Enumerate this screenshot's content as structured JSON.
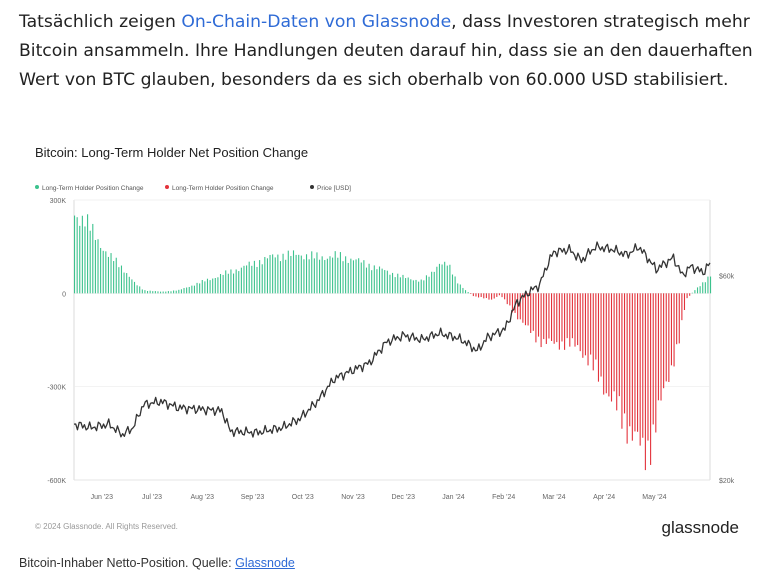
{
  "intro": {
    "before": "Tatsächlich zeigen ",
    "link": "On-Chain-Daten von Glassnode",
    "after": ", dass Investoren strategisch mehr Bitcoin ansammeln. Ihre Handlungen deuten darauf hin, dass sie an den dauerhaften Wert von BTC glauben, besonders da es sich oberhalb von 60.000 USD stabilisiert."
  },
  "caption": {
    "text": "Bitcoin-Inhaber Netto-Position. Quelle: ",
    "link": "Glassnode"
  },
  "colors": {
    "positive": "#3cc28d",
    "negative": "#e3323b",
    "price": "#333333",
    "link": "#2f6bd6"
  },
  "chart_data": {
    "type": "bar",
    "title": "Bitcoin: Long-Term Holder Net Position Change",
    "legend": [
      {
        "label": "Long-Term Holder Position Change",
        "color": "#3cc28d"
      },
      {
        "label": "Long-Term Holder Position Change",
        "color": "#e3323b"
      },
      {
        "label": "Price [USD]",
        "color": "#333333"
      }
    ],
    "legend_placement": "top-left",
    "y_left": {
      "ticks": [
        300000,
        0,
        -300000,
        -600000
      ],
      "tick_labels": [
        "300K",
        "0",
        "-300K",
        "-600K"
      ],
      "lim": [
        -600000,
        300000
      ]
    },
    "y_right": {
      "scale": "log",
      "ticks": [
        60000,
        20000
      ],
      "tick_labels": [
        "$60k",
        "$20k"
      ],
      "lim": [
        20000,
        90000
      ]
    },
    "x_ticks": [
      "Jun '23",
      "Jul '23",
      "Aug '23",
      "Sep '23",
      "Oct '23",
      "Nov '23",
      "Dec '23",
      "Jan '24",
      "Feb '24",
      "Mar '24",
      "Apr '24",
      "May '24"
    ],
    "x_range_days": [
      0,
      366
    ],
    "position_change": {
      "unit": "BTC",
      "keyframes": [
        [
          0,
          250000
        ],
        [
          6,
          240000
        ],
        [
          12,
          180000
        ],
        [
          20,
          120000
        ],
        [
          28,
          80000
        ],
        [
          35,
          30000
        ],
        [
          40,
          10000
        ],
        [
          50,
          5000
        ],
        [
          60,
          10000
        ],
        [
          70,
          30000
        ],
        [
          85,
          60000
        ],
        [
          100,
          90000
        ],
        [
          115,
          120000
        ],
        [
          130,
          125000
        ],
        [
          140,
          115000
        ],
        [
          150,
          120000
        ],
        [
          160,
          110000
        ],
        [
          170,
          90000
        ],
        [
          180,
          70000
        ],
        [
          190,
          50000
        ],
        [
          200,
          40000
        ],
        [
          205,
          60000
        ],
        [
          210,
          100000
        ],
        [
          215,
          90000
        ],
        [
          220,
          40000
        ],
        [
          225,
          10000
        ],
        [
          230,
          -10000
        ],
        [
          240,
          -20000
        ],
        [
          245,
          -5000
        ],
        [
          250,
          -40000
        ],
        [
          260,
          -110000
        ],
        [
          270,
          -160000
        ],
        [
          280,
          -160000
        ],
        [
          290,
          -170000
        ],
        [
          300,
          -250000
        ],
        [
          310,
          -350000
        ],
        [
          320,
          -440000
        ],
        [
          328,
          -520000
        ],
        [
          332,
          -470000
        ],
        [
          340,
          -300000
        ],
        [
          348,
          -150000
        ],
        [
          352,
          -20000
        ],
        [
          356,
          5000
        ],
        [
          360,
          25000
        ],
        [
          366,
          60000
        ]
      ]
    },
    "price": {
      "unit": "USD",
      "keyframes": [
        [
          0,
          27000
        ],
        [
          10,
          26500
        ],
        [
          20,
          27000
        ],
        [
          28,
          25500
        ],
        [
          34,
          26500
        ],
        [
          40,
          30000
        ],
        [
          50,
          30500
        ],
        [
          60,
          29500
        ],
        [
          70,
          29300
        ],
        [
          85,
          29000
        ],
        [
          90,
          26000
        ],
        [
          105,
          25800
        ],
        [
          120,
          26500
        ],
        [
          130,
          27800
        ],
        [
          140,
          30500
        ],
        [
          150,
          34500
        ],
        [
          160,
          36000
        ],
        [
          170,
          37500
        ],
        [
          180,
          42000
        ],
        [
          190,
          43500
        ],
        [
          200,
          42500
        ],
        [
          210,
          44000
        ],
        [
          220,
          43000
        ],
        [
          225,
          42000
        ],
        [
          232,
          40000
        ],
        [
          238,
          43000
        ],
        [
          248,
          45000
        ],
        [
          255,
          52000
        ],
        [
          262,
          55000
        ],
        [
          268,
          57000
        ],
        [
          272,
          63000
        ],
        [
          276,
          68000
        ],
        [
          285,
          69000
        ],
        [
          292,
          65000
        ],
        [
          300,
          70000
        ],
        [
          310,
          69000
        ],
        [
          318,
          67000
        ],
        [
          325,
          70000
        ],
        [
          335,
          62000
        ],
        [
          345,
          66000
        ],
        [
          350,
          60000
        ],
        [
          355,
          63000
        ],
        [
          362,
          61000
        ],
        [
          366,
          64000
        ]
      ]
    },
    "watermark": "glassnode",
    "copyright": "© 2024 Glassnode. All Rights Reserved."
  }
}
